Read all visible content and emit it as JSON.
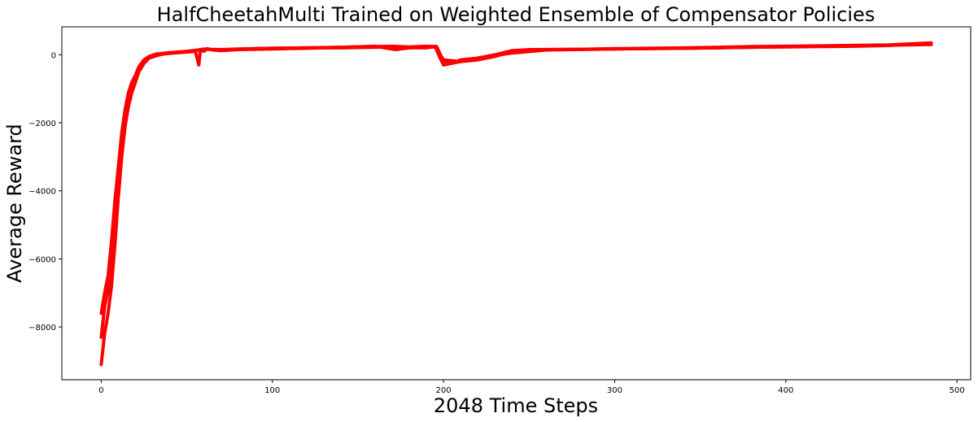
{
  "chart_data": {
    "type": "line",
    "title": "HalfCheetahMulti Trained on Weighted Ensemble of Compensator Policies",
    "xlabel": "2048 Time Steps",
    "ylabel": "Average Reward",
    "xlim": [
      -23,
      508
    ],
    "ylim": [
      -9550,
      820
    ],
    "xticks": [
      0,
      100,
      200,
      300,
      400,
      500
    ],
    "yticks": [
      -8000,
      -6000,
      -4000,
      -2000,
      0
    ],
    "grid": false,
    "legend": "none",
    "line_color": "#ff0000",
    "series": [
      {
        "x": [
          0,
          2,
          4,
          6,
          8,
          10,
          12,
          14,
          16,
          18,
          20,
          22,
          25,
          28,
          32,
          36,
          40,
          45,
          50,
          55,
          57,
          58,
          60,
          62,
          65,
          70,
          80,
          90,
          100,
          110,
          120,
          130,
          140,
          150,
          160,
          170,
          175,
          180,
          190,
          195,
          198,
          200,
          205,
          210,
          220,
          230,
          240,
          250,
          260,
          280,
          300,
          320,
          340,
          360,
          380,
          400,
          420,
          440,
          460,
          470,
          485
        ],
        "values": [
          -9100,
          -8200,
          -7600,
          -6800,
          -5600,
          -4200,
          -3000,
          -2100,
          -1500,
          -1100,
          -800,
          -500,
          -250,
          -100,
          -30,
          20,
          40,
          60,
          80,
          100,
          -300,
          150,
          100,
          180,
          140,
          120,
          150,
          160,
          170,
          180,
          190,
          200,
          200,
          210,
          220,
          230,
          180,
          210,
          200,
          250,
          -100,
          -300,
          -250,
          -200,
          -150,
          -50,
          100,
          140,
          150,
          160,
          170,
          180,
          190,
          200,
          220,
          230,
          240,
          250,
          270,
          300,
          330
        ]
      },
      {
        "x": [
          0,
          2,
          4,
          6,
          8,
          10,
          12,
          14,
          16,
          18,
          20,
          22,
          25,
          28,
          32,
          36,
          40,
          45,
          50,
          55,
          60,
          65,
          70,
          80,
          90,
          100,
          120,
          140,
          160,
          170,
          180,
          190,
          196,
          200,
          205,
          210,
          220,
          230,
          240,
          250,
          280,
          300,
          340,
          380,
          420,
          460,
          485
        ],
        "values": [
          -8300,
          -7400,
          -6900,
          -6000,
          -4900,
          -3700,
          -2600,
          -1800,
          -1300,
          -950,
          -700,
          -420,
          -200,
          -80,
          0,
          30,
          50,
          70,
          90,
          120,
          170,
          150,
          140,
          160,
          180,
          190,
          200,
          220,
          240,
          250,
          230,
          250,
          240,
          -200,
          -250,
          -150,
          -100,
          0,
          120,
          150,
          160,
          180,
          200,
          240,
          260,
          290,
          350
        ]
      },
      {
        "x": [
          0,
          2,
          4,
          6,
          8,
          10,
          12,
          14,
          16,
          18,
          20,
          22,
          25,
          28,
          32,
          36,
          40,
          45,
          50,
          55,
          60,
          70,
          80,
          100,
          120,
          140,
          160,
          172,
          180,
          195,
          200,
          210,
          220,
          240,
          260,
          300,
          340,
          380,
          420,
          460,
          485
        ],
        "values": [
          -7600,
          -7000,
          -6500,
          -5500,
          -4300,
          -3300,
          -2300,
          -1600,
          -1100,
          -800,
          -600,
          -350,
          -150,
          -50,
          20,
          40,
          60,
          80,
          100,
          130,
          160,
          150,
          170,
          190,
          200,
          220,
          250,
          150,
          200,
          230,
          -150,
          -200,
          -100,
          50,
          140,
          170,
          190,
          220,
          250,
          280,
          300
        ]
      }
    ]
  }
}
